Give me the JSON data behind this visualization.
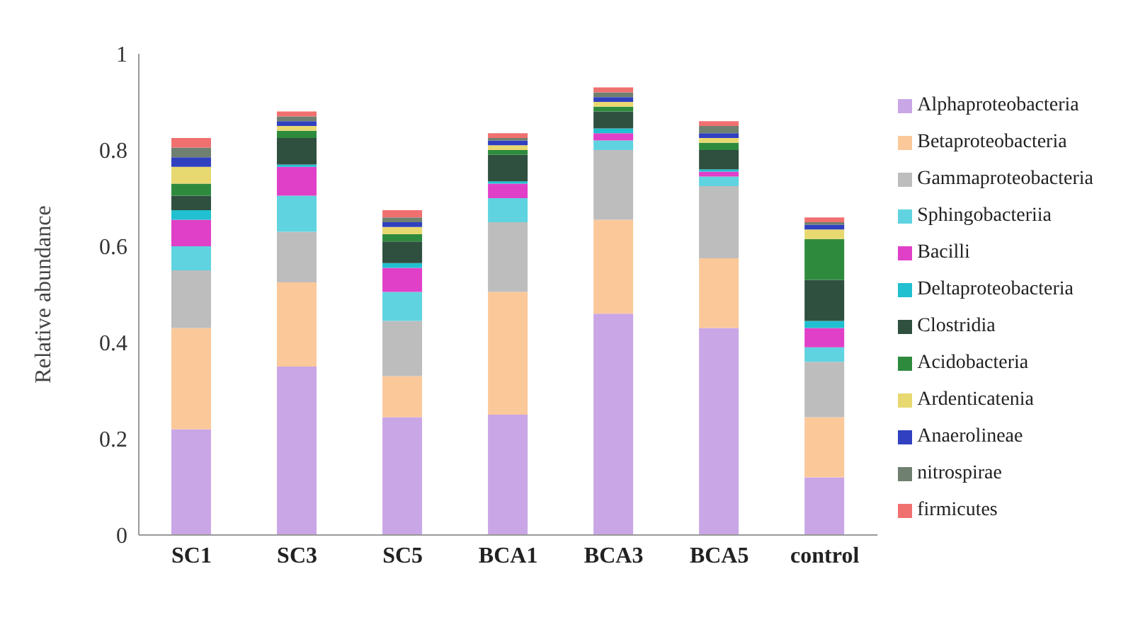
{
  "chart_data": {
    "type": "bar",
    "stacked": true,
    "ylabel": "Relative abundance",
    "categories": [
      "SC1",
      "SC3",
      "SC5",
      "BCA1",
      "BCA3",
      "BCA5",
      "control"
    ],
    "ylim": [
      0,
      1
    ],
    "yticks": [
      0,
      0.2,
      0.4,
      0.6,
      0.8,
      1
    ],
    "grid": false,
    "legend": "right",
    "series": [
      {
        "name": "Alphaproteobacteria",
        "color": "#c9a6e6",
        "values": [
          0.22,
          0.35,
          0.245,
          0.25,
          0.46,
          0.43,
          0.12
        ]
      },
      {
        "name": "Betaproteobacteria",
        "color": "#fbc89a",
        "values": [
          0.21,
          0.175,
          0.085,
          0.255,
          0.195,
          0.145,
          0.125
        ]
      },
      {
        "name": "Gammaproteobacteria",
        "color": "#bdbdbd",
        "values": [
          0.12,
          0.105,
          0.115,
          0.145,
          0.145,
          0.15,
          0.115
        ]
      },
      {
        "name": "Sphingobacteriia",
        "color": "#5fd3df",
        "values": [
          0.05,
          0.075,
          0.06,
          0.05,
          0.02,
          0.02,
          0.03
        ]
      },
      {
        "name": "Bacilli",
        "color": "#e040c8",
        "values": [
          0.055,
          0.06,
          0.05,
          0.03,
          0.015,
          0.01,
          0.04
        ]
      },
      {
        "name": "Deltaproteobacteria",
        "color": "#20c0d0",
        "values": [
          0.02,
          0.005,
          0.01,
          0.005,
          0.01,
          0.005,
          0.015
        ]
      },
      {
        "name": "Clostridia",
        "color": "#2f4f3f",
        "values": [
          0.03,
          0.055,
          0.045,
          0.055,
          0.035,
          0.04,
          0.085
        ]
      },
      {
        "name": "Acidobacteria",
        "color": "#2e8b3e",
        "values": [
          0.025,
          0.015,
          0.015,
          0.01,
          0.01,
          0.015,
          0.085
        ]
      },
      {
        "name": "Ardenticatenia",
        "color": "#e8d870",
        "values": [
          0.035,
          0.01,
          0.015,
          0.01,
          0.01,
          0.01,
          0.02
        ]
      },
      {
        "name": "Anaerolineae",
        "color": "#3040c0",
        "values": [
          0.02,
          0.01,
          0.01,
          0.01,
          0.01,
          0.01,
          0.01
        ]
      },
      {
        "name": "nitrospirae",
        "color": "#708070",
        "values": [
          0.02,
          0.01,
          0.01,
          0.005,
          0.01,
          0.015,
          0.005
        ]
      },
      {
        "name": "firmicutes",
        "color": "#f07070",
        "values": [
          0.02,
          0.01,
          0.015,
          0.01,
          0.01,
          0.01,
          0.01
        ]
      }
    ]
  }
}
